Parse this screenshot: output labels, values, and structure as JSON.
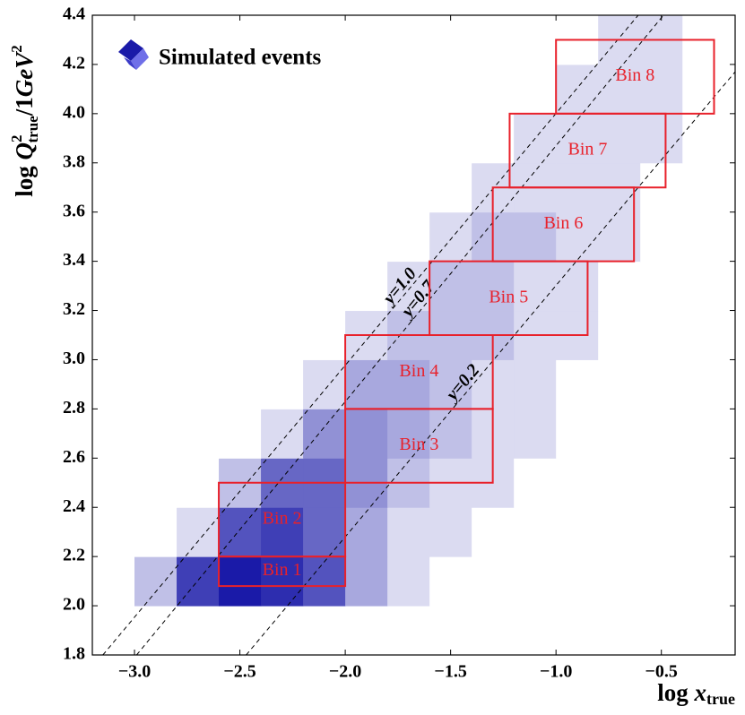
{
  "chart_data": {
    "type": "heatmap",
    "xlabel_parts": [
      "log ",
      "x",
      "true"
    ],
    "ylabel_parts": [
      "log ",
      "Q",
      "2",
      "true",
      "/1",
      "GeV",
      "2"
    ],
    "legend": "Simulated events",
    "xlim": [
      -3.2,
      -0.15
    ],
    "ylim": [
      1.8,
      4.4
    ],
    "xticks": [
      {
        "value": -3.0,
        "label": "−3.0"
      },
      {
        "value": -2.5,
        "label": "−2.5"
      },
      {
        "value": -2.0,
        "label": "−2.0"
      },
      {
        "value": -1.5,
        "label": "−1.5"
      },
      {
        "value": -1.0,
        "label": "−1.0"
      },
      {
        "value": -0.5,
        "label": "−0.5"
      }
    ],
    "yticks": [
      1.8,
      {
        "value": 2.0,
        "label": "2.0"
      },
      2.2,
      2.4,
      2.6,
      2.8,
      {
        "value": 3.0,
        "label": "3.0"
      },
      3.2,
      3.4,
      3.6,
      3.8,
      {
        "value": 4.0,
        "label": "4.0"
      },
      4.2,
      4.4
    ],
    "color": "#1a1aa8",
    "x_edges": [
      -3.0,
      -2.8,
      -2.6,
      -2.4,
      -2.2,
      -2.0,
      -1.8,
      -1.6,
      -1.4,
      -1.2,
      -1.0,
      -0.8,
      -0.6,
      -0.4,
      -0.2
    ],
    "y_edges": [
      2.0,
      2.2,
      2.4,
      2.6,
      2.8,
      3.0,
      3.2,
      3.4,
      3.6,
      3.8,
      4.0,
      4.2,
      4.4
    ],
    "z": [
      [
        2,
        8,
        10,
        9,
        7,
        3,
        1,
        0,
        0,
        0,
        0,
        0,
        0,
        0
      ],
      [
        0,
        1,
        7,
        8,
        6,
        3,
        1,
        1,
        0,
        0,
        0,
        0,
        0,
        0
      ],
      [
        0,
        0,
        2,
        6,
        6,
        4,
        2,
        1,
        1,
        0,
        0,
        0,
        0,
        0
      ],
      [
        0,
        0,
        0,
        1,
        4,
        4,
        3,
        2,
        1,
        1,
        0,
        0,
        0,
        0
      ],
      [
        0,
        0,
        0,
        0,
        1,
        3,
        3,
        2,
        1,
        1,
        0,
        0,
        0,
        0
      ],
      [
        0,
        0,
        0,
        0,
        0,
        1,
        2,
        2,
        2,
        1,
        1,
        0,
        0,
        0
      ],
      [
        0,
        0,
        0,
        0,
        0,
        0,
        1,
        2,
        2,
        1,
        1,
        0,
        0,
        0
      ],
      [
        0,
        0,
        0,
        0,
        0,
        0,
        0,
        1,
        2,
        2,
        1,
        1,
        0,
        0
      ],
      [
        0,
        0,
        0,
        0,
        0,
        0,
        0,
        0,
        1,
        1,
        1,
        1,
        0,
        0
      ],
      [
        0,
        0,
        0,
        0,
        0,
        0,
        0,
        0,
        0,
        1,
        1,
        1,
        1,
        0
      ],
      [
        0,
        0,
        0,
        0,
        0,
        0,
        0,
        0,
        0,
        0,
        1,
        1,
        1,
        0
      ],
      [
        0,
        0,
        0,
        0,
        0,
        0,
        0,
        0,
        0,
        0,
        0,
        1,
        1,
        0
      ]
    ],
    "bins": [
      {
        "label": "Bin 1",
        "x": [
          -2.6,
          -2.0
        ],
        "y": [
          2.08,
          2.2
        ]
      },
      {
        "label": "Bin 2",
        "x": [
          -2.6,
          -2.0
        ],
        "y": [
          2.2,
          2.5
        ]
      },
      {
        "label": "Bin 3",
        "x": [
          -2.0,
          -1.3
        ],
        "y": [
          2.5,
          2.8
        ]
      },
      {
        "label": "Bin 4",
        "x": [
          -2.0,
          -1.3
        ],
        "y": [
          2.8,
          3.1
        ]
      },
      {
        "label": "Bin 5",
        "x": [
          -1.6,
          -0.85
        ],
        "y": [
          3.1,
          3.4
        ]
      },
      {
        "label": "Bin 6",
        "x": [
          -1.3,
          -0.63
        ],
        "y": [
          3.4,
          3.7
        ]
      },
      {
        "label": "Bin 7",
        "x": [
          -1.22,
          -0.48
        ],
        "y": [
          3.7,
          4.0
        ]
      },
      {
        "label": "Bin 8",
        "x": [
          -1.0,
          -0.25
        ],
        "y": [
          4.0,
          4.3
        ]
      }
    ],
    "bin_color": "#e8212b",
    "lines": [
      {
        "label": "y=1.0",
        "x": [
          -3.15,
          -0.61
        ],
        "y": [
          1.8,
          4.4
        ]
      },
      {
        "label": "y=0.7",
        "x": [
          -2.99,
          -0.49
        ],
        "y": [
          1.8,
          4.4
        ]
      },
      {
        "label": "y=0.2",
        "x": [
          -2.47,
          -0.15
        ],
        "y": [
          1.8,
          4.17
        ]
      }
    ]
  }
}
